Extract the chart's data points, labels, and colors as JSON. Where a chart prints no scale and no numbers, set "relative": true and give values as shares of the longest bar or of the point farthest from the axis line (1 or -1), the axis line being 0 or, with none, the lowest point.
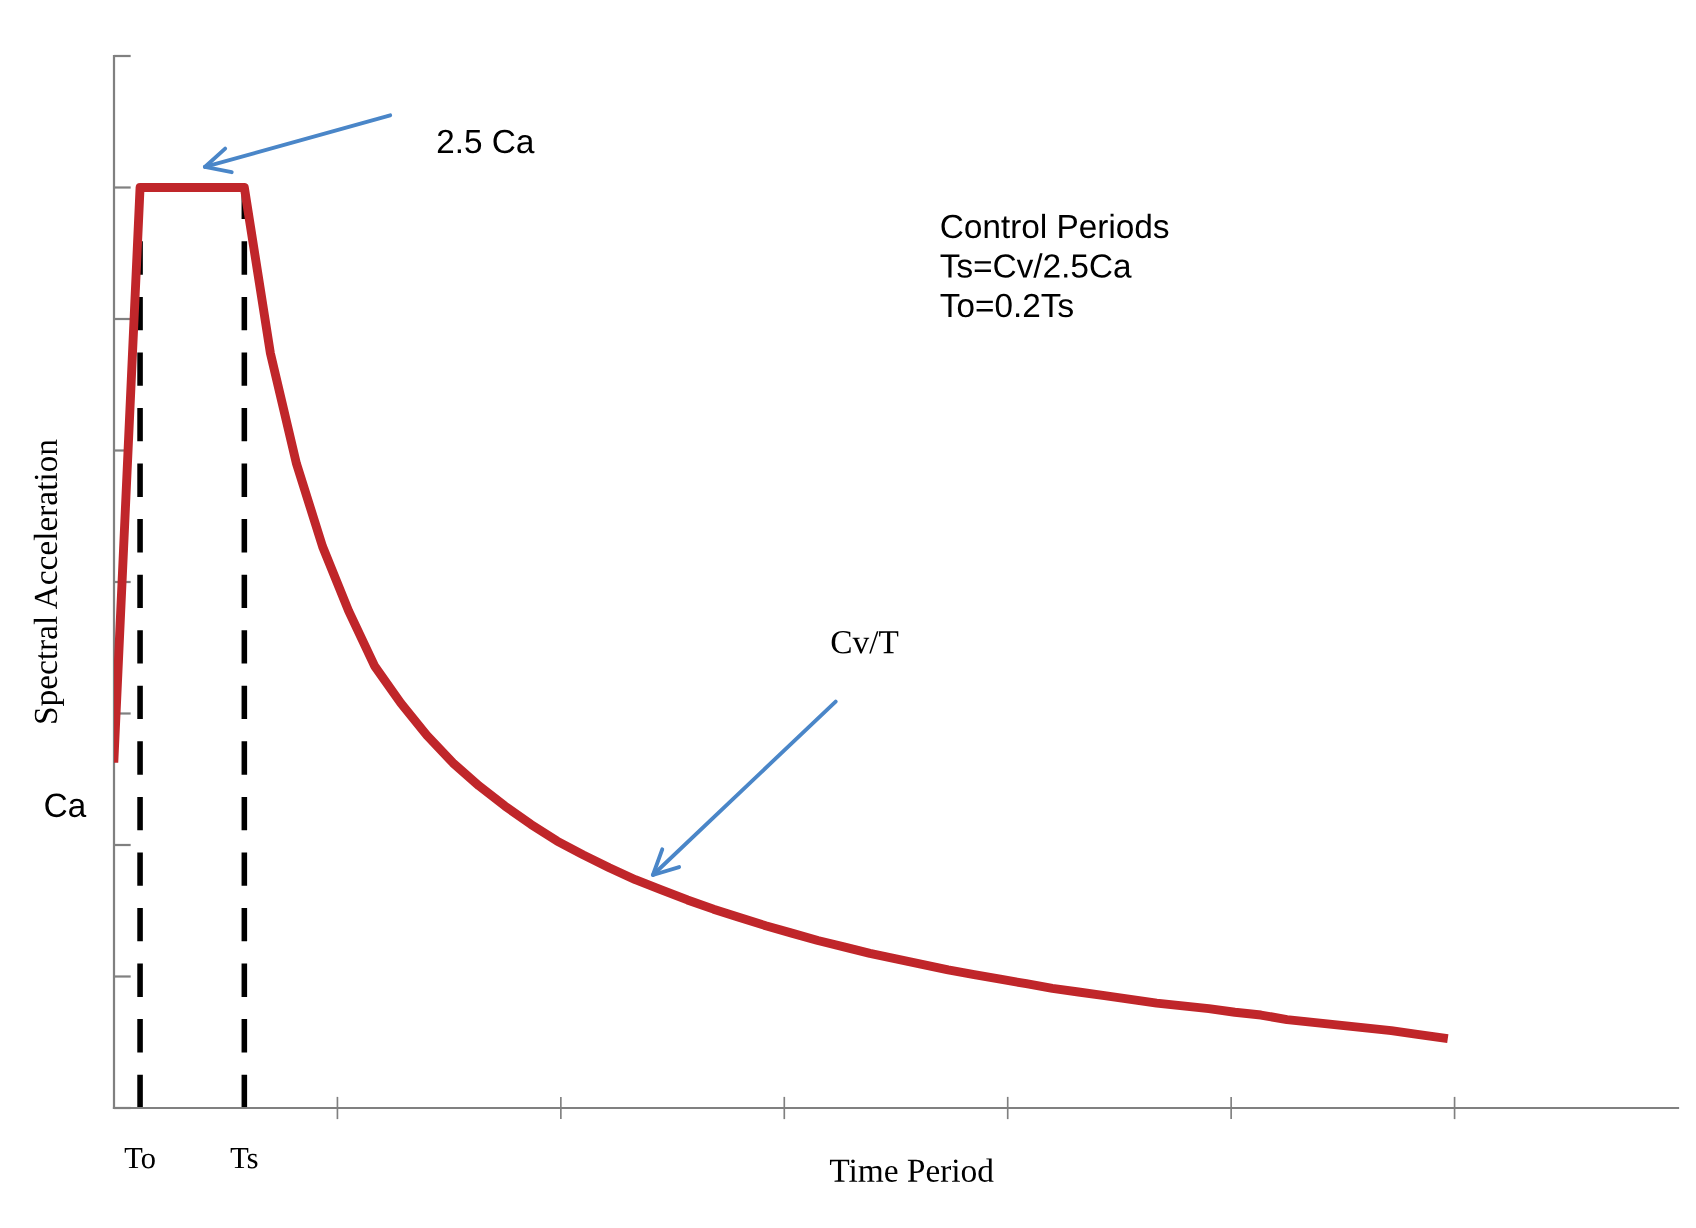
{
  "chart_data": {
    "type": "line",
    "relative": true,
    "xlabel": "Time Period",
    "ylabel": "Spectral Acceleration",
    "categories": [
      null,
      "To",
      null,
      null,
      null,
      "Ts",
      null,
      null,
      null,
      null,
      null,
      null,
      null,
      null,
      null,
      null,
      null,
      null,
      null,
      null,
      null,
      null,
      null,
      null,
      null,
      null,
      null,
      null,
      null,
      null,
      null,
      null,
      null,
      null,
      null,
      null,
      null,
      null,
      null,
      null,
      null,
      null,
      null,
      null,
      null,
      null,
      null,
      null,
      null,
      null,
      null,
      null,
      null,
      null,
      null,
      null,
      null,
      null,
      null,
      null,
      null
    ],
    "series": [
      {
        "color": "#c0262a",
        "values": [
          0.38,
          1,
          1,
          1,
          1,
          1,
          0.82,
          0.7,
          0.61,
          0.54,
          0.48,
          0.44,
          0.405,
          0.375,
          0.35,
          0.328,
          0.308,
          0.29,
          0.275,
          0.261,
          0.248,
          0.237,
          0.226,
          0.216,
          0.207,
          0.198,
          0.19,
          0.182,
          0.175,
          0.168,
          0.162,
          0.156,
          0.15,
          0.145,
          0.14,
          0.135,
          0.13,
          0.126,
          0.122,
          0.118,
          0.114,
          0.111,
          0.108,
          0.104,
          0.101,
          0.096,
          0.093,
          0.09,
          0.087,
          0.084,
          0.08,
          0.076,
          null,
          null,
          null,
          null,
          null,
          null,
          null,
          null,
          null
        ]
      }
    ],
    "tick_labels": "x",
    "grid": false,
    "marker": "none",
    "line_style": "solid",
    "ref_lines": [
      {
        "axis": "x",
        "value": "To",
        "color": "#000000",
        "line_style": "dashed"
      },
      {
        "axis": "x",
        "value": "Ts",
        "color": "#000000",
        "line_style": "dashed"
      }
    ],
    "annotations": [
      "2.5 Ca",
      "Cv/T",
      "Control Periods\nTs=Cv/2.5Ca\nTo=0.2Ts",
      "Ca"
    ]
  }
}
